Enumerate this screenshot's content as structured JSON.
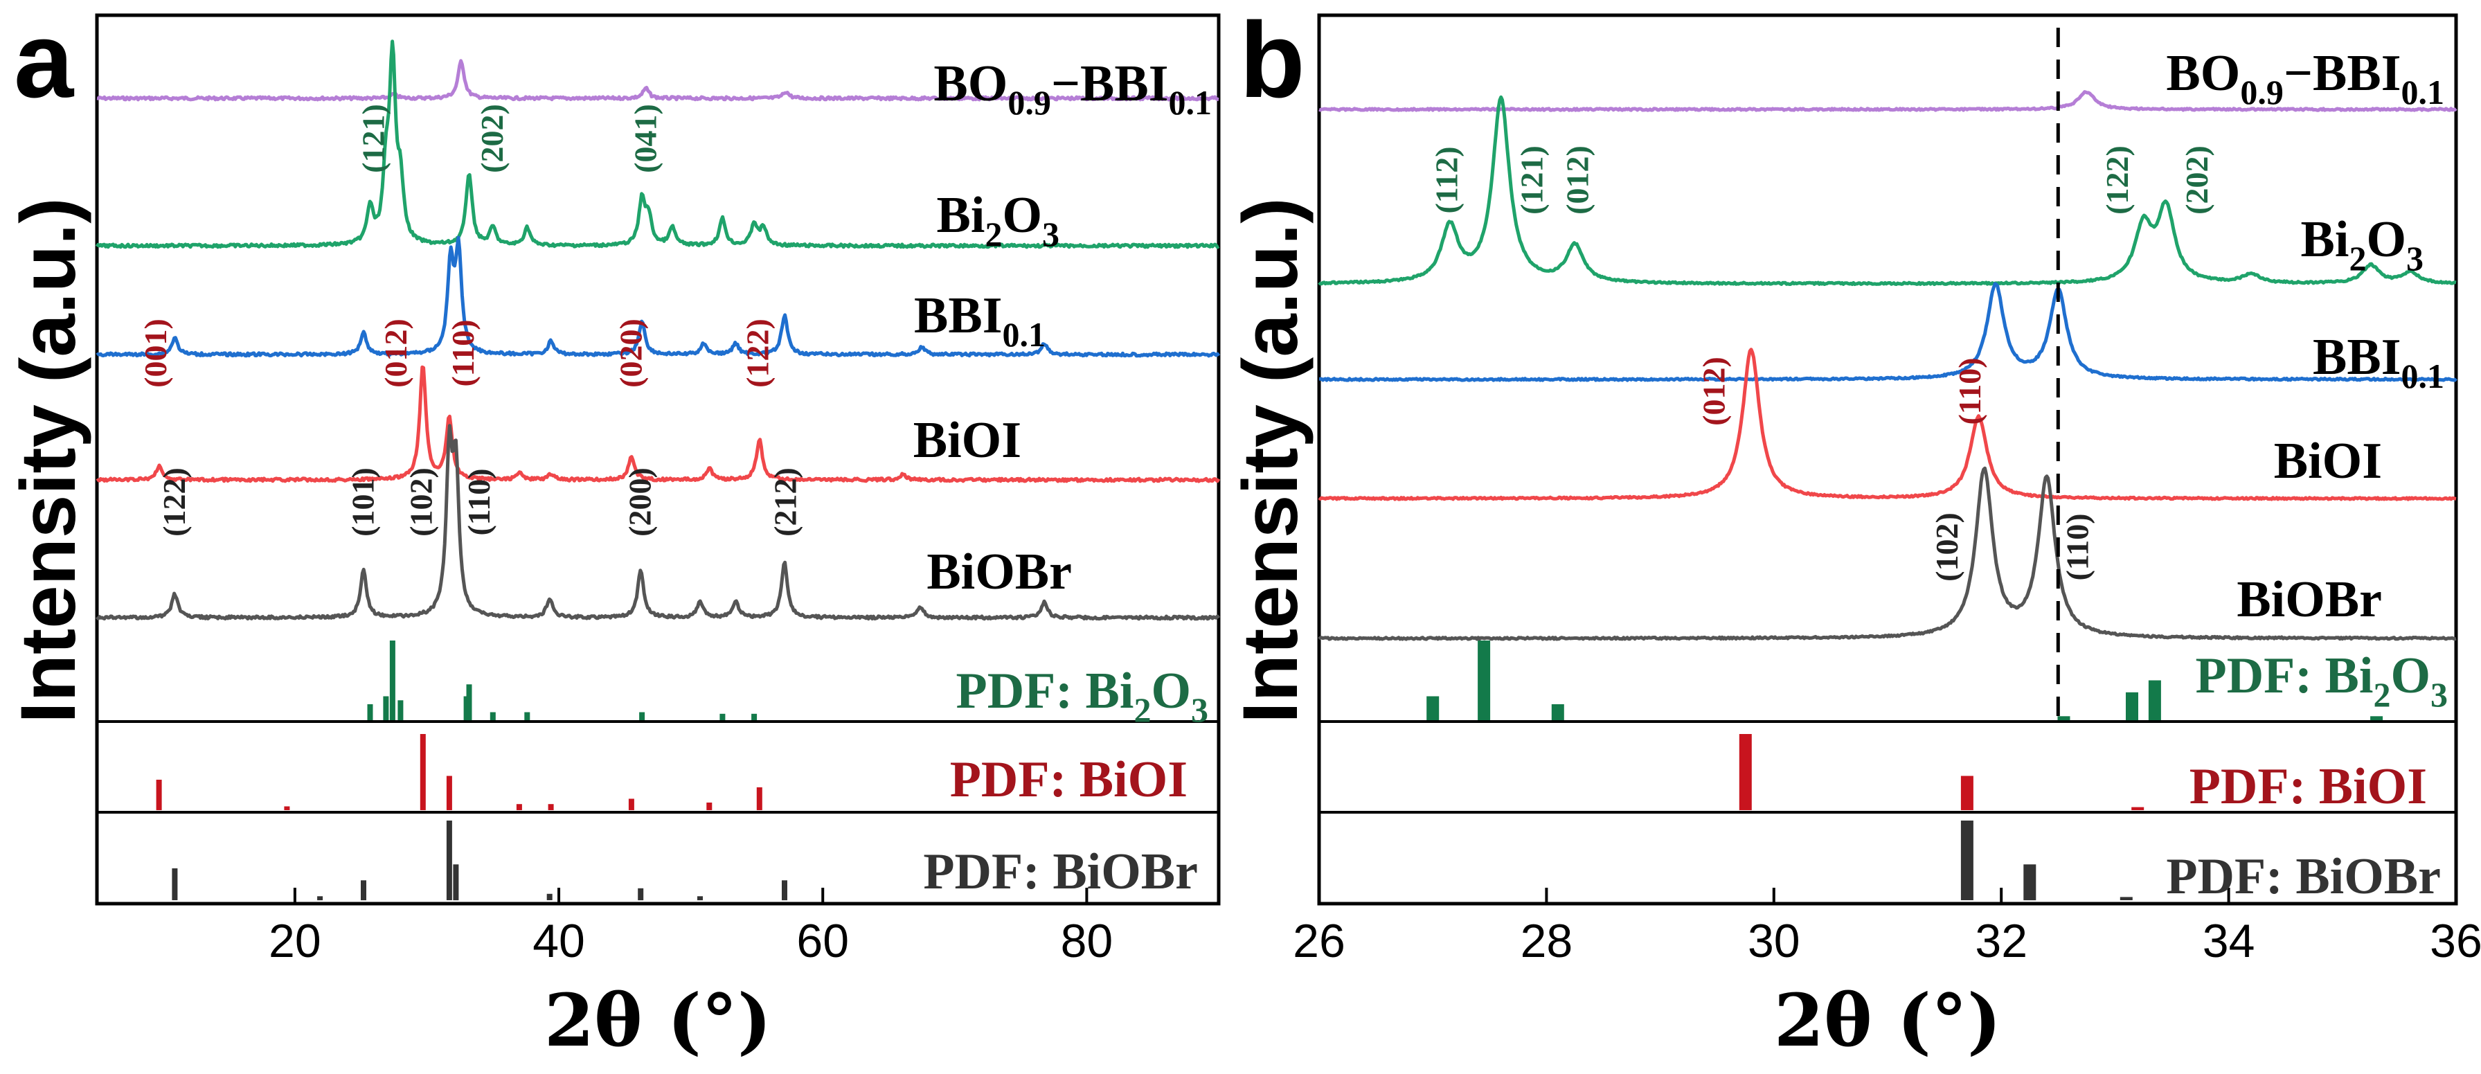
{
  "colors": {
    "BO09_BBI01": "#b57ed6",
    "Bi2O3": "#1fa36a",
    "BBI01": "#1f6fcf",
    "BiOI": "#f0474a",
    "BiOBr": "#555555",
    "pdf_Bi2O3": "#137a4a",
    "pdf_BiOI": "#c8141e",
    "pdf_BiOBr": "#333333",
    "hkl_Bi2O3": "#1d6b45",
    "hkl_BiOI": "#a3141c",
    "hkl_BiOBr": "#222222"
  },
  "labels": {
    "composite": [
      "BO",
      "0.9",
      "−BBI",
      "0.1"
    ],
    "Bi2O3": [
      "Bi",
      "2",
      "O",
      "3"
    ],
    "BBI01": [
      "BBI",
      "0.1"
    ],
    "BiOI": "BiOI",
    "BiOBr": "BiOBr",
    "pdf_Bi2O3": [
      "PDF: Bi",
      "2",
      "O",
      "3"
    ],
    "pdf_BiOI": "PDF: BiOI",
    "pdf_BiOBr": "PDF: BiOBr"
  },
  "chart_data": [
    {
      "panel": "a",
      "type": "line",
      "title": "",
      "xlabel": "2θ (°)",
      "ylabel": "Intensity (a.u.)",
      "xlim": [
        5,
        90
      ],
      "xticks": [
        20,
        40,
        60,
        80
      ],
      "series": [
        {
          "name": "BO0.9−BBI0.1",
          "key": "BO09_BBI01",
          "peaks": [
            [
              32.6,
              0.45
            ],
            [
              46.6,
              0.12
            ],
            [
              57.2,
              0.08
            ],
            [
              27.5,
              0.05
            ]
          ]
        },
        {
          "name": "Bi2O3",
          "key": "Bi2O3",
          "peaks": [
            [
              25.7,
              0.2
            ],
            [
              26.9,
              0.35
            ],
            [
              27.4,
              1.0
            ],
            [
              28.0,
              0.3
            ],
            [
              33.2,
              0.4
            ],
            [
              35.0,
              0.1
            ],
            [
              37.6,
              0.1
            ],
            [
              46.3,
              0.25
            ],
            [
              46.8,
              0.15
            ],
            [
              48.6,
              0.1
            ],
            [
              52.4,
              0.15
            ],
            [
              54.8,
              0.12
            ],
            [
              55.5,
              0.1
            ]
          ]
        },
        {
          "name": "BBI0.1",
          "key": "BBI01",
          "peaks": [
            [
              10.9,
              0.15
            ],
            [
              25.2,
              0.2
            ],
            [
              31.8,
              0.8
            ],
            [
              32.4,
              0.9
            ],
            [
              39.4,
              0.12
            ],
            [
              46.3,
              0.3
            ],
            [
              51.0,
              0.1
            ],
            [
              53.4,
              0.1
            ],
            [
              57.1,
              0.35
            ],
            [
              67.5,
              0.07
            ],
            [
              76.8,
              0.1
            ]
          ]
        },
        {
          "name": "BiOI",
          "key": "BiOI",
          "peaks": [
            [
              9.7,
              0.12
            ],
            [
              29.7,
              1.0
            ],
            [
              31.7,
              0.55
            ],
            [
              37.0,
              0.06
            ],
            [
              39.4,
              0.05
            ],
            [
              45.5,
              0.2
            ],
            [
              51.4,
              0.1
            ],
            [
              55.2,
              0.35
            ],
            [
              66.1,
              0.05
            ]
          ]
        },
        {
          "name": "BiOBr",
          "key": "BiOBr",
          "peaks": [
            [
              10.9,
              0.15
            ],
            [
              25.2,
              0.3
            ],
            [
              31.7,
              1.0
            ],
            [
              32.2,
              0.9
            ],
            [
              39.3,
              0.12
            ],
            [
              46.2,
              0.3
            ],
            [
              50.7,
              0.1
            ],
            [
              53.4,
              0.1
            ],
            [
              57.1,
              0.35
            ],
            [
              67.4,
              0.07
            ],
            [
              76.8,
              0.1
            ]
          ]
        }
      ],
      "reference_patterns": [
        {
          "name": "PDF: Bi2O3",
          "key": "pdf_Bi2O3",
          "bars": [
            [
              25.7,
              0.2
            ],
            [
              26.9,
              0.3
            ],
            [
              27.4,
              1.0
            ],
            [
              28.0,
              0.25
            ],
            [
              33.0,
              0.3
            ],
            [
              33.2,
              0.45
            ],
            [
              35.0,
              0.1
            ],
            [
              37.6,
              0.1
            ],
            [
              46.3,
              0.1
            ],
            [
              52.4,
              0.08
            ],
            [
              54.8,
              0.08
            ]
          ]
        },
        {
          "name": "PDF: BiOI",
          "key": "pdf_BiOI",
          "bars": [
            [
              9.7,
              0.4
            ],
            [
              19.4,
              0.05
            ],
            [
              29.7,
              1.0
            ],
            [
              31.7,
              0.45
            ],
            [
              37.0,
              0.08
            ],
            [
              39.4,
              0.08
            ],
            [
              45.5,
              0.15
            ],
            [
              51.4,
              0.1
            ],
            [
              55.2,
              0.3
            ]
          ]
        },
        {
          "name": "PDF: BiOBr",
          "key": "pdf_BiOBr",
          "bars": [
            [
              10.9,
              0.4
            ],
            [
              21.9,
              0.05
            ],
            [
              25.2,
              0.25
            ],
            [
              31.7,
              1.0
            ],
            [
              32.2,
              0.45
            ],
            [
              39.3,
              0.08
            ],
            [
              46.2,
              0.15
            ],
            [
              50.7,
              0.05
            ],
            [
              57.1,
              0.25
            ]
          ]
        }
      ],
      "annotations": [
        {
          "series": "Bi2O3",
          "labels": [
            [
              "(121)",
              26.2
            ],
            [
              "(202)",
              35.2
            ],
            [
              "(041)",
              46.8
            ]
          ]
        },
        {
          "series": "BiOI",
          "labels": [
            [
              "(001)",
              9.7
            ],
            [
              "(012)",
              27.9
            ],
            [
              "(110)",
              33.0
            ],
            [
              "(020)",
              45.7
            ],
            [
              "(122)",
              55.3
            ]
          ]
        },
        {
          "series": "BiOBr",
          "labels": [
            [
              "(122)",
              11.1
            ],
            [
              "(101)",
              25.4
            ],
            [
              "(102)",
              29.8
            ],
            [
              "(110)",
              34.2
            ],
            [
              "(200)",
              46.4
            ],
            [
              "(212)",
              57.4
            ]
          ]
        }
      ]
    },
    {
      "panel": "b",
      "type": "line",
      "title": "",
      "xlabel": "2θ (°)",
      "ylabel": "Intensity (a.u.)",
      "xlim": [
        26,
        36
      ],
      "xticks": [
        26,
        28,
        30,
        32,
        34,
        36
      ],
      "reference_line_x": 32.5,
      "series": [
        {
          "name": "BO0.9−BBI0.1",
          "key": "BO09_BBI01",
          "peaks": [
            [
              32.75,
              0.5
            ]
          ]
        },
        {
          "name": "Bi2O3",
          "key": "Bi2O3",
          "peaks": [
            [
              27.15,
              0.3
            ],
            [
              27.6,
              1.0
            ],
            [
              28.25,
              0.2
            ],
            [
              33.25,
              0.3
            ],
            [
              33.45,
              0.4
            ],
            [
              34.2,
              0.05
            ],
            [
              35.25,
              0.1
            ],
            [
              35.6,
              0.06
            ]
          ]
        },
        {
          "name": "BBI0.1",
          "key": "BBI01",
          "peaks": [
            [
              31.95,
              1.0
            ],
            [
              32.5,
              0.95
            ]
          ]
        },
        {
          "name": "BiOI",
          "key": "BiOI",
          "peaks": [
            [
              29.8,
              1.0
            ],
            [
              31.8,
              0.55
            ]
          ]
        },
        {
          "name": "BiOBr",
          "key": "BiOBr",
          "peaks": [
            [
              31.85,
              1.0
            ],
            [
              32.4,
              0.95
            ]
          ]
        }
      ],
      "reference_patterns": [
        {
          "name": "PDF: Bi2O3",
          "key": "pdf_Bi2O3",
          "bars": [
            [
              27.0,
              0.3
            ],
            [
              27.45,
              1.0
            ],
            [
              28.1,
              0.2
            ],
            [
              32.55,
              0.05
            ],
            [
              33.15,
              0.35
            ],
            [
              33.35,
              0.5
            ],
            [
              35.3,
              0.05
            ]
          ]
        },
        {
          "name": "PDF: BiOI",
          "key": "pdf_BiOI",
          "bars": [
            [
              29.75,
              1.0
            ],
            [
              31.7,
              0.45
            ],
            [
              33.2,
              0.04
            ]
          ]
        },
        {
          "name": "PDF: BiOBr",
          "key": "pdf_BiOBr",
          "bars": [
            [
              31.7,
              1.0
            ],
            [
              32.25,
              0.45
            ],
            [
              33.1,
              0.04
            ]
          ]
        }
      ],
      "annotations": [
        {
          "series": "Bi2O3",
          "labels": [
            [
              "(112)",
              27.15
            ],
            [
              "(121)",
              27.9
            ],
            [
              "(012)",
              28.3
            ],
            [
              "(122)",
              33.05
            ],
            [
              "(202)",
              33.75
            ]
          ]
        },
        {
          "series": "BiOI",
          "labels": [
            [
              "(012)",
              29.5
            ],
            [
              "(110)",
              31.75
            ]
          ]
        },
        {
          "series": "BiOBr",
          "labels": [
            [
              "(102)",
              31.55
            ],
            [
              "(110)",
              32.7
            ]
          ]
        }
      ]
    }
  ]
}
